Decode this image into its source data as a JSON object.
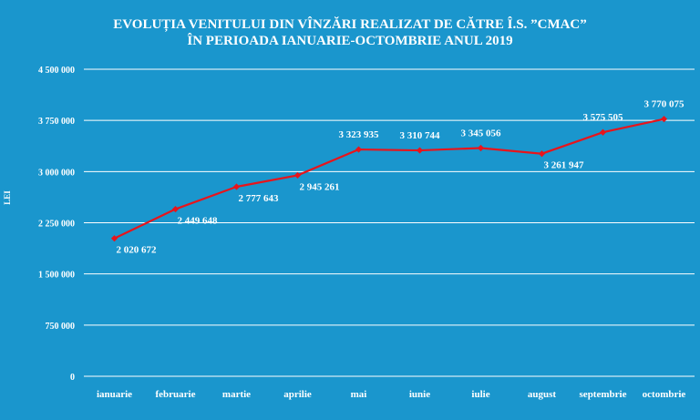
{
  "chart_data": {
    "type": "line",
    "title_lines": [
      "EVOLUȚIA VENITULUI DIN VÎNZĂRI REALIZAT DE CĂTRE Î.S. ”CMAC”",
      "ÎN PERIOADA IANUARIE-OCTOMBRIE ANUL 2019"
    ],
    "ylabel": "LEI",
    "xlabel": "",
    "ylim": [
      0,
      4500000
    ],
    "yticks": [
      0,
      750000,
      1500000,
      2250000,
      3000000,
      3750000,
      4500000
    ],
    "ytick_labels": [
      "0",
      "750 000",
      "1 500 000",
      "2 250 000",
      "3 000 000",
      "3 750 000",
      "4 500 000"
    ],
    "grid": true,
    "categories": [
      "ianuarie",
      "februarie",
      "martie",
      "aprilie",
      "mai",
      "iunie",
      "iulie",
      "august",
      "septembrie",
      "octombrie"
    ],
    "series": [
      {
        "values": [
          2020672,
          2449648,
          2777643,
          2945261,
          3323935,
          3310744,
          3345056,
          3261947,
          3575505,
          3770075
        ],
        "labels": [
          "2 020 672",
          "2 449 648",
          "2 777 643",
          "2 945 261",
          "3 323 935",
          "3 310 744",
          "3 345 056",
          "3 261 947",
          "3 575 505",
          "3 770 075"
        ],
        "color": "#e8141b"
      }
    ],
    "colors": {
      "background": "#1a96cd",
      "text": "#ffffff",
      "line": "#e8141b"
    }
  }
}
